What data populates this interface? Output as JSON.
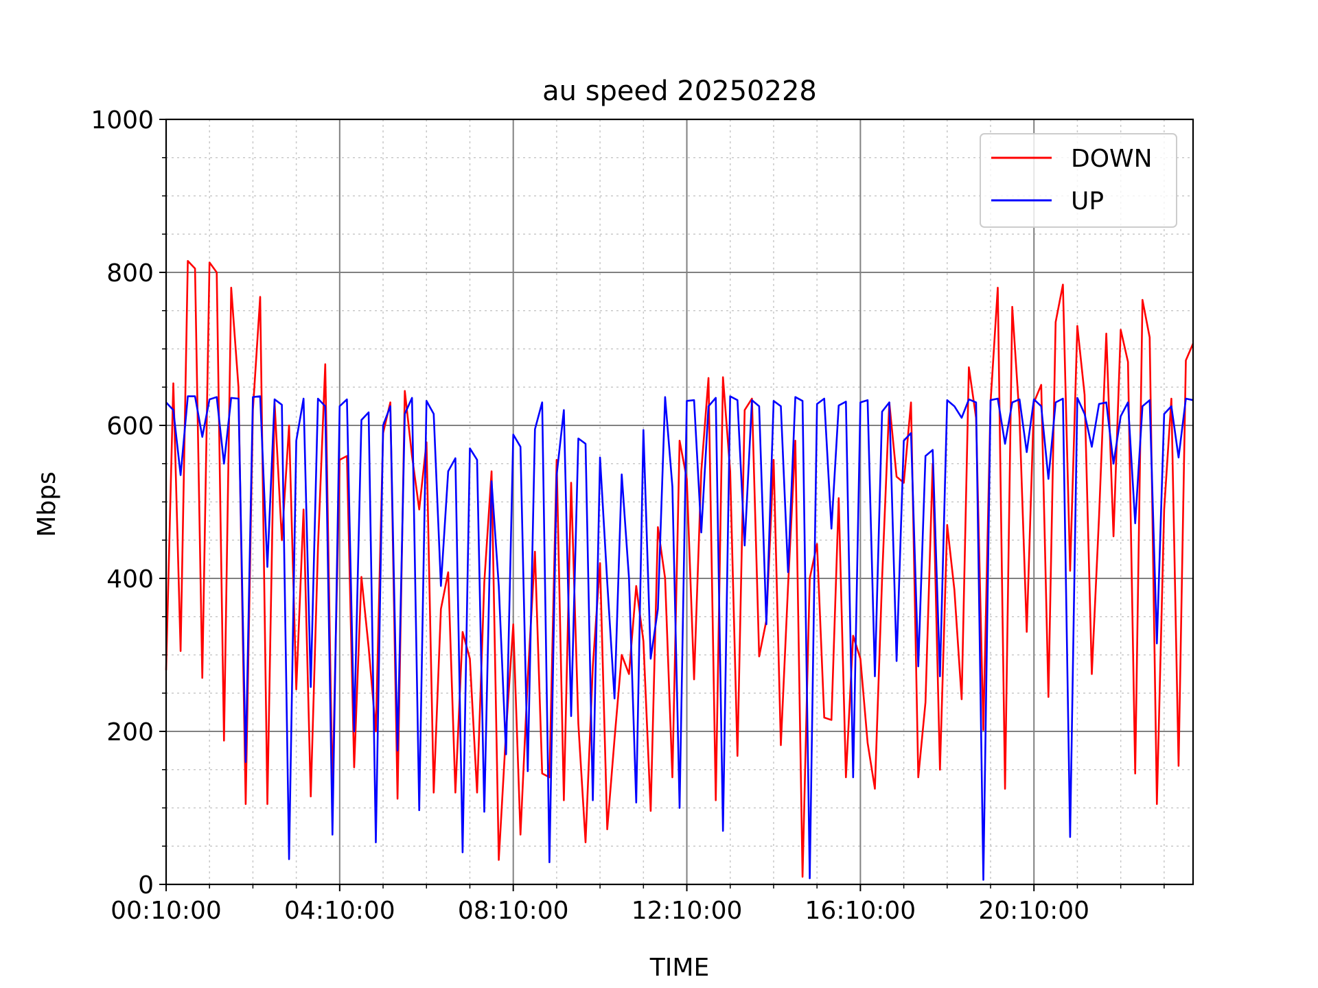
{
  "chart_data": {
    "type": "line",
    "title": "au speed 20250228",
    "xlabel": "TIME",
    "ylabel": "Mbps",
    "ylim": [
      0,
      1000
    ],
    "yticks": [
      0,
      200,
      400,
      600,
      800,
      1000
    ],
    "xtick_labels": [
      "00:10:00",
      "04:10:00",
      "08:10:00",
      "12:10:00",
      "16:10:00",
      "20:10:00"
    ],
    "grid": true,
    "legend_position": "top-right",
    "series": [
      {
        "name": "DOWN",
        "color": "#ff0000",
        "values": [
          280,
          655,
          305,
          815,
          805,
          270,
          813,
          800,
          188,
          780,
          650,
          105,
          620,
          768,
          105,
          630,
          450,
          600,
          255,
          490,
          115,
          440,
          680,
          120,
          555,
          560,
          153,
          402,
          310,
          200,
          590,
          630,
          112,
          645,
          560,
          490,
          578,
          120,
          360,
          408,
          120,
          330,
          295,
          120,
          395,
          540,
          32,
          200,
          340,
          65,
          270,
          435,
          145,
          140,
          555,
          110,
          525,
          210,
          55,
          285,
          420,
          72,
          190,
          300,
          275,
          390,
          318,
          96,
          467,
          400,
          140,
          580,
          530,
          268,
          540,
          662,
          110,
          663,
          540,
          168,
          620,
          635,
          298,
          345,
          555,
          182,
          390,
          580,
          10,
          400,
          445,
          218,
          215,
          505,
          140,
          325,
          295,
          185,
          125,
          400,
          630,
          533,
          525,
          630,
          140,
          238,
          550,
          150,
          470,
          385,
          242,
          676,
          610,
          202,
          630,
          780,
          125,
          755,
          610,
          330,
          630,
          653,
          245,
          735,
          784,
          410,
          730,
          640,
          275,
          480,
          720,
          455,
          725,
          683,
          145,
          764,
          715,
          105,
          490,
          635,
          155,
          685,
          707
        ]
      },
      {
        "name": "UP",
        "color": "#0000ff",
        "values": [
          630,
          620,
          535,
          638,
          638,
          585,
          634,
          637,
          550,
          636,
          635,
          160,
          637,
          638,
          415,
          634,
          627,
          33,
          580,
          635,
          258,
          635,
          625,
          65,
          625,
          634,
          200,
          607,
          617,
          55,
          600,
          625,
          175,
          615,
          636,
          97,
          632,
          615,
          390,
          540,
          557,
          42,
          570,
          555,
          95,
          527,
          390,
          170,
          588,
          572,
          148,
          595,
          630,
          29,
          535,
          620,
          220,
          583,
          576,
          110,
          558,
          395,
          243,
          536,
          400,
          107,
          594,
          295,
          360,
          637,
          520,
          100,
          632,
          633,
          460,
          625,
          636,
          70,
          638,
          633,
          443,
          633,
          625,
          340,
          632,
          625,
          408,
          637,
          632,
          8,
          628,
          635,
          465,
          626,
          631,
          140,
          630,
          633,
          272,
          618,
          630,
          292,
          580,
          590,
          285,
          560,
          568,
          272,
          633,
          625,
          610,
          634,
          630,
          6,
          633,
          635,
          576,
          630,
          634,
          565,
          634,
          625,
          530,
          630,
          635,
          62,
          636,
          615,
          572,
          628,
          630,
          550,
          612,
          630,
          472,
          625,
          633,
          315,
          615,
          625,
          558,
          635,
          633
        ]
      }
    ]
  }
}
